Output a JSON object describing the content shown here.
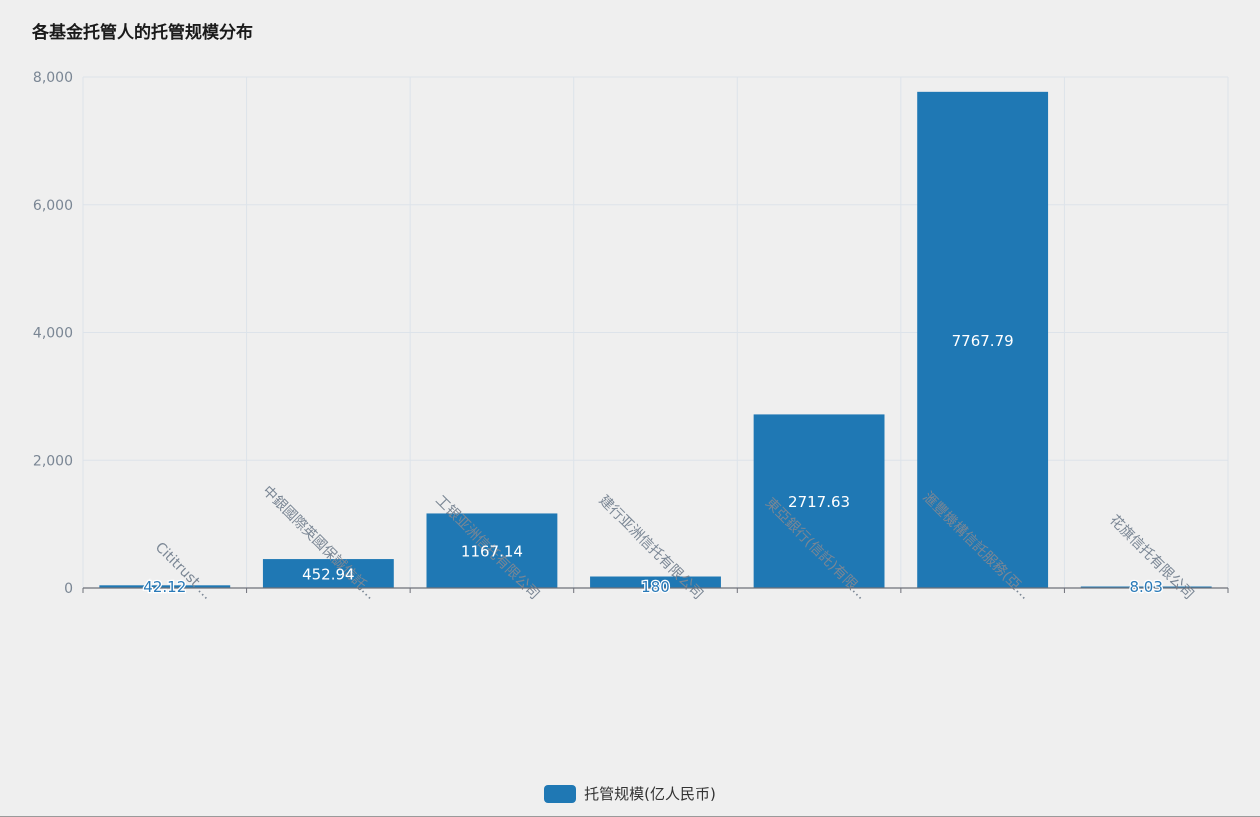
{
  "colors": {
    "bar": "#1f78b4",
    "grid": "#dde3ea",
    "axis": "#6e7079",
    "background": "#efefef"
  },
  "chart_data": {
    "type": "bar",
    "title": "各基金托管人的托管规模分布",
    "categories": [
      "Cititrust ...",
      "中銀國際英國保誠信託...",
      "工银亚洲信托有限公司",
      "建行亚洲信托有限公司",
      "東亞銀行(信託)有限...",
      "滙豐機構信託服務(亞...",
      "花旗信托有限公司"
    ],
    "series": [
      {
        "name": "托管规模(亿人民币)",
        "values": [
          42.12,
          452.94,
          1167.14,
          180,
          2717.63,
          7767.79,
          8.03
        ],
        "labels": [
          "42.12",
          "452.94",
          "1167.14",
          "180",
          "2717.63",
          "7767.79",
          "8.03"
        ]
      }
    ],
    "ylim": [
      0,
      8000
    ],
    "yticks": [
      0,
      2000,
      4000,
      6000,
      8000
    ],
    "ytick_labels": [
      "0",
      "2,000",
      "4,000",
      "6,000",
      "8,000"
    ],
    "xlabel": "",
    "ylabel": "",
    "grid": true,
    "legend": "bottom-center"
  }
}
